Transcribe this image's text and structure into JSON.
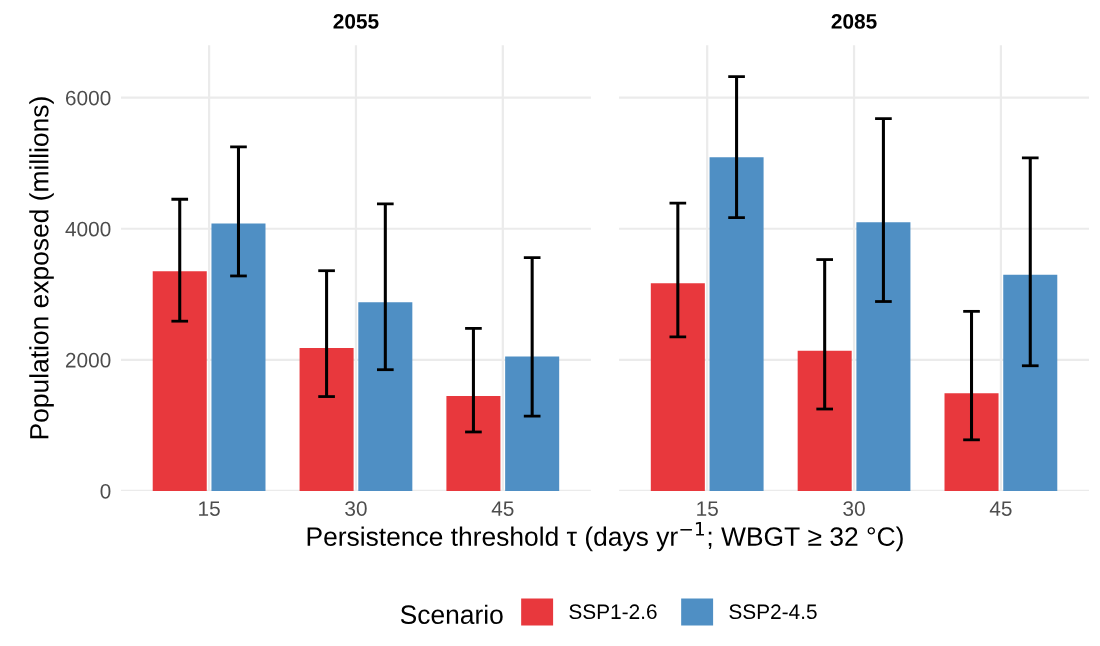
{
  "chart_data": [
    {
      "type": "bar",
      "title": "2055",
      "ylabel": "Population exposed (millions)",
      "xlabel": "Persistence threshold τ (days yr$^{−1}$; WBGT ≥ 32 °C)",
      "legend_title": "Scenario",
      "legend": "bottom",
      "grid": true,
      "categories": [
        "15",
        "30",
        "45"
      ],
      "ylim": [
        0,
        6800
      ],
      "yticks": [
        0,
        2000,
        4000,
        6000
      ],
      "series": [
        {
          "name": "SSP1-2.6",
          "color": "#e8383d",
          "values": [
            3350,
            2180,
            1450
          ],
          "errors": [
            [
              2590,
              4450
            ],
            [
              1440,
              3360
            ],
            [
              900,
              2480
            ]
          ]
        },
        {
          "name": "SSP2-4.5",
          "color": "#4f8fc4",
          "values": [
            4080,
            2880,
            2050
          ],
          "errors": [
            [
              3280,
              5250
            ],
            [
              1850,
              4380
            ],
            [
              1140,
              3560
            ]
          ]
        }
      ]
    },
    {
      "type": "bar",
      "title": "2085",
      "grid": true,
      "tick_labels": "x",
      "categories": [
        "15",
        "30",
        "45"
      ],
      "ylim": [
        0,
        6800
      ],
      "yticks": [
        0,
        2000,
        4000,
        6000
      ],
      "series": [
        {
          "name": "SSP1-2.6",
          "color": "#e8383d",
          "values": [
            3170,
            2140,
            1490
          ],
          "errors": [
            [
              2350,
              4390
            ],
            [
              1250,
              3530
            ],
            [
              780,
              2740
            ]
          ]
        },
        {
          "name": "SSP2-4.5",
          "color": "#4f8fc4",
          "values": [
            5090,
            4100,
            3300
          ],
          "errors": [
            [
              4170,
              6320
            ],
            [
              2890,
              5680
            ],
            [
              1910,
              5080
            ]
          ]
        }
      ]
    }
  ]
}
